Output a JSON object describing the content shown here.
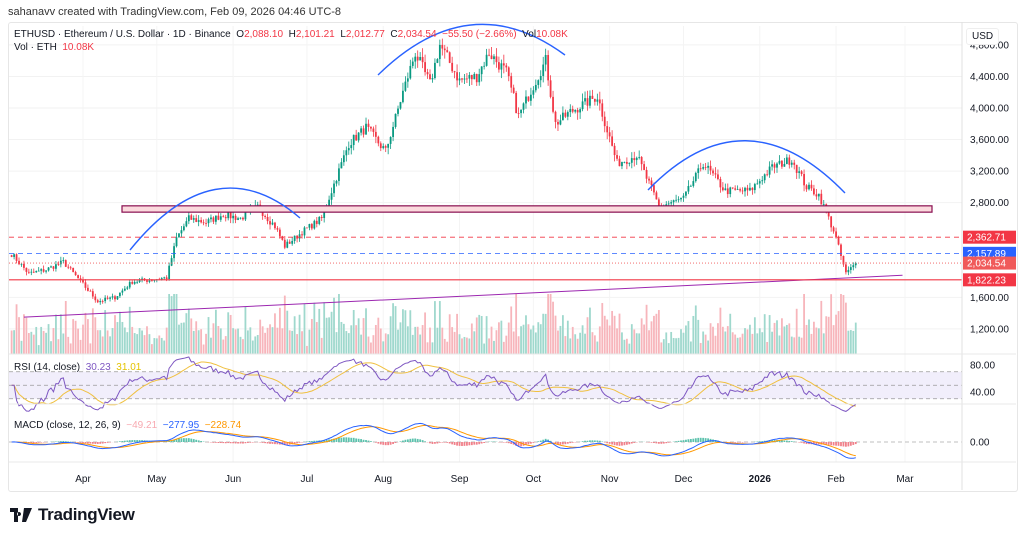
{
  "credit": "sahanavv created with TradingView.com, Feb 09, 2026 04:46 UTC-8",
  "legend": {
    "symbol": "ETHUSD · Ethereum / U.S. Dollar · 1D · Binance",
    "o_label": "O",
    "o": "2,088.10",
    "h_label": "H",
    "h": "2,101.21",
    "l_label": "L",
    "l": "2,012.77",
    "c_label": "C",
    "c": "2,034.54",
    "change": "−55.50 (−2.66%)",
    "vol_label": "Vol",
    "vol": "10.08K",
    "vol_line_label": "Vol · ETH",
    "vol_line_value": "10.08K"
  },
  "currency": "USD",
  "rsi": {
    "label": "RSI (14, close)",
    "value": "30.23",
    "ma": "31.01",
    "ticks": [
      "80.00",
      "40.00"
    ]
  },
  "macd": {
    "label": "MACD (close, 12, 26, 9)",
    "hist": "−49.21",
    "macd": "−277.95",
    "signal": "−228.74",
    "ticks": [
      "0.00"
    ]
  },
  "logo": "TradingView",
  "colors": {
    "up": "#089981",
    "down": "#f23645",
    "arc": "#2962ff",
    "zone": "#880e4f",
    "trend": "#9c27b0",
    "rsi": "#7e57c2",
    "signal": "#ff9800",
    "macd": "#2962ff"
  },
  "chart_data": {
    "type": "candlestick",
    "title": "ETHUSD · Ethereum / U.S. Dollar · 1D · Binance",
    "y_ticks": [
      "4,800.00",
      "4,400.00",
      "4,000.00",
      "3,600.00",
      "3,200.00",
      "2,800.00",
      "1,600.00",
      "1,200.00"
    ],
    "y_tick_values": [
      4800,
      4400,
      4000,
      3600,
      3200,
      2800,
      1600,
      1200
    ],
    "x_ticks": [
      "Apr",
      "May",
      "Jun",
      "Jul",
      "Aug",
      "Sep",
      "Oct",
      "Nov",
      "Dec",
      "2026",
      "Feb",
      "Mar"
    ],
    "x_tick_dates": [
      "2025-04-01",
      "2025-05-01",
      "2025-06-01",
      "2025-07-01",
      "2025-08-01",
      "2025-09-01",
      "2025-10-01",
      "2025-11-01",
      "2025-12-01",
      "2026-01-01",
      "2026-02-01",
      "2026-03-01"
    ],
    "price_tags": [
      {
        "label": "2,362.71",
        "value": 2362.71,
        "color": "#f23645",
        "style": "dashed"
      },
      {
        "label": "2,157.89",
        "value": 2157.89,
        "color": "#2962ff",
        "style": "dashed"
      },
      {
        "label": "2,034.54",
        "value": 2034.54,
        "color": "#f05a5a",
        "style": "dotted"
      },
      {
        "label": "1,822.23",
        "value": 1822.23,
        "color": "#f23645",
        "style": "solid"
      }
    ],
    "approx_closes": [
      [
        "2025-03-03",
        2150
      ],
      [
        "2025-03-10",
        1900
      ],
      [
        "2025-03-17",
        1950
      ],
      [
        "2025-03-24",
        2050
      ],
      [
        "2025-03-31",
        1800
      ],
      [
        "2025-04-07",
        1550
      ],
      [
        "2025-04-14",
        1600
      ],
      [
        "2025-04-21",
        1800
      ],
      [
        "2025-04-28",
        1820
      ],
      [
        "2025-05-05",
        1850
      ],
      [
        "2025-05-09",
        2350
      ],
      [
        "2025-05-14",
        2600
      ],
      [
        "2025-05-21",
        2550
      ],
      [
        "2025-05-28",
        2650
      ],
      [
        "2025-06-04",
        2600
      ],
      [
        "2025-06-11",
        2750
      ],
      [
        "2025-06-18",
        2500
      ],
      [
        "2025-06-22",
        2250
      ],
      [
        "2025-06-30",
        2450
      ],
      [
        "2025-07-07",
        2600
      ],
      [
        "2025-07-11",
        2950
      ],
      [
        "2025-07-18",
        3550
      ],
      [
        "2025-07-25",
        3750
      ],
      [
        "2025-08-02",
        3450
      ],
      [
        "2025-08-09",
        4200
      ],
      [
        "2025-08-14",
        4700
      ],
      [
        "2025-08-20",
        4300
      ],
      [
        "2025-08-24",
        4800
      ],
      [
        "2025-09-01",
        4350
      ],
      [
        "2025-09-08",
        4400
      ],
      [
        "2025-09-13",
        4700
      ],
      [
        "2025-09-20",
        4450
      ],
      [
        "2025-09-25",
        3900
      ],
      [
        "2025-10-06",
        4600
      ],
      [
        "2025-10-10",
        3800
      ],
      [
        "2025-10-16",
        3950
      ],
      [
        "2025-10-27",
        4150
      ],
      [
        "2025-11-04",
        3300
      ],
      [
        "2025-11-12",
        3400
      ],
      [
        "2025-11-21",
        2750
      ],
      [
        "2025-12-01",
        2850
      ],
      [
        "2025-12-09",
        3300
      ],
      [
        "2025-12-18",
        2950
      ],
      [
        "2025-12-28",
        2950
      ],
      [
        "2026-01-06",
        3250
      ],
      [
        "2026-01-14",
        3350
      ],
      [
        "2026-01-20",
        3000
      ],
      [
        "2026-01-25",
        2900
      ],
      [
        "2026-01-31",
        2450
      ],
      [
        "2026-02-05",
        1900
      ],
      [
        "2026-02-09",
        2034.54
      ]
    ],
    "annotations": {
      "resistance_zone": [
        2680,
        2760
      ],
      "trendline": [
        [
          "2025-03-08",
          1350
        ],
        [
          "2026-02-28",
          1880
        ]
      ],
      "arcs": [
        "head-and-shoulders curves"
      ]
    }
  }
}
